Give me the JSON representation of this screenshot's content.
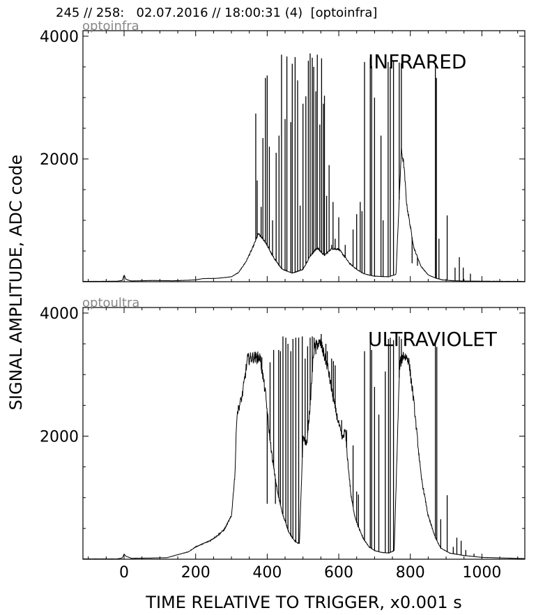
{
  "header": {
    "text": "245 // 258:   02.07.2016 // 18:00:31 (4)  [optoinfra]"
  },
  "shared": {
    "xlabel": "TIME RELATIVE TO TRIGGER,   x0.001 s",
    "ylabel": "SIGNAL AMPLITUDE,  ADC code",
    "xlim": [
      -115,
      1120
    ],
    "ylim": [
      0,
      4090
    ],
    "xticks": [
      0,
      200,
      400,
      600,
      800,
      1000
    ],
    "yticks": [
      2000,
      4000
    ],
    "line_color": "#000000",
    "name_color": "#888888"
  },
  "chart_data": [
    {
      "type": "line",
      "panel_name": "optoinfra",
      "label": "INFRARED",
      "baseline": [
        [
          -115,
          5
        ],
        [
          -20,
          8
        ],
        [
          -5,
          20
        ],
        [
          0,
          110
        ],
        [
          5,
          40
        ],
        [
          20,
          12
        ],
        [
          80,
          20
        ],
        [
          140,
          15
        ],
        [
          200,
          30
        ],
        [
          220,
          50
        ],
        [
          260,
          55
        ],
        [
          300,
          80
        ],
        [
          320,
          150
        ],
        [
          340,
          320
        ],
        [
          360,
          560
        ],
        [
          375,
          780
        ],
        [
          395,
          650
        ],
        [
          415,
          420
        ],
        [
          440,
          210
        ],
        [
          470,
          140
        ],
        [
          500,
          200
        ],
        [
          520,
          420
        ],
        [
          540,
          550
        ],
        [
          560,
          430
        ],
        [
          580,
          540
        ],
        [
          600,
          530
        ],
        [
          615,
          420
        ],
        [
          630,
          300
        ],
        [
          650,
          200
        ],
        [
          670,
          130
        ],
        [
          690,
          100
        ],
        [
          700,
          90
        ],
        [
          740,
          80
        ],
        [
          760,
          120
        ],
        [
          775,
          2150
        ],
        [
          782,
          1900
        ],
        [
          790,
          1250
        ],
        [
          810,
          550
        ],
        [
          830,
          250
        ],
        [
          850,
          110
        ],
        [
          870,
          60
        ],
        [
          890,
          30
        ],
        [
          920,
          15
        ],
        [
          960,
          10
        ],
        [
          1000,
          8
        ],
        [
          1120,
          5
        ]
      ],
      "spikes": [
        [
          368,
          2740
        ],
        [
          372,
          1650
        ],
        [
          383,
          1220
        ],
        [
          388,
          2340
        ],
        [
          395,
          3320
        ],
        [
          400,
          3360
        ],
        [
          406,
          2200
        ],
        [
          415,
          1000
        ],
        [
          425,
          2100
        ],
        [
          433,
          2380
        ],
        [
          440,
          3700
        ],
        [
          450,
          2650
        ],
        [
          455,
          3670
        ],
        [
          466,
          2600
        ],
        [
          470,
          3550
        ],
        [
          478,
          3660
        ],
        [
          485,
          3280
        ],
        [
          492,
          1240
        ],
        [
          500,
          2900
        ],
        [
          508,
          3020
        ],
        [
          515,
          3600
        ],
        [
          520,
          3720
        ],
        [
          526,
          3650
        ],
        [
          530,
          3500
        ],
        [
          536,
          3100
        ],
        [
          540,
          3700
        ],
        [
          547,
          2560
        ],
        [
          552,
          3640
        ],
        [
          557,
          2900
        ],
        [
          560,
          3030
        ],
        [
          566,
          1400
        ],
        [
          573,
          1900
        ],
        [
          580,
          600
        ],
        [
          584,
          1300
        ],
        [
          590,
          700
        ],
        [
          600,
          1050
        ],
        [
          618,
          600
        ],
        [
          640,
          850
        ],
        [
          650,
          1100
        ],
        [
          660,
          1300
        ],
        [
          665,
          1150
        ],
        [
          672,
          3580
        ],
        [
          688,
          3640
        ],
        [
          692,
          3510
        ],
        [
          700,
          3000
        ],
        [
          718,
          2380
        ],
        [
          724,
          1000
        ],
        [
          738,
          3580
        ],
        [
          744,
          3500
        ],
        [
          753,
          3600
        ],
        [
          769,
          3570
        ],
        [
          775,
          3560
        ],
        [
          805,
          300
        ],
        [
          820,
          260
        ],
        [
          870,
          3550
        ],
        [
          873,
          3320
        ],
        [
          880,
          700
        ],
        [
          903,
          1080
        ],
        [
          925,
          230
        ],
        [
          937,
          400
        ],
        [
          948,
          230
        ],
        [
          968,
          130
        ]
      ]
    },
    {
      "type": "line",
      "panel_name": "optoultra",
      "label": "ULTRAVIOLET",
      "baseline": [
        [
          -115,
          5
        ],
        [
          -20,
          5
        ],
        [
          -5,
          20
        ],
        [
          0,
          80
        ],
        [
          5,
          50
        ],
        [
          20,
          15
        ],
        [
          80,
          20
        ],
        [
          120,
          25
        ],
        [
          160,
          90
        ],
        [
          180,
          120
        ],
        [
          200,
          200
        ],
        [
          220,
          250
        ],
        [
          240,
          300
        ],
        [
          260,
          380
        ],
        [
          280,
          480
        ],
        [
          300,
          700
        ],
        [
          310,
          1400
        ],
        [
          315,
          2350
        ],
        [
          330,
          2650
        ],
        [
          345,
          3250
        ],
        [
          360,
          3280
        ],
        [
          380,
          3280
        ],
        [
          395,
          2700
        ],
        [
          405,
          2100
        ],
        [
          415,
          1600
        ],
        [
          430,
          1050
        ],
        [
          445,
          700
        ],
        [
          460,
          450
        ],
        [
          470,
          350
        ],
        [
          480,
          280
        ],
        [
          490,
          250
        ],
        [
          500,
          2000
        ],
        [
          510,
          1850
        ],
        [
          520,
          2500
        ],
        [
          530,
          3400
        ],
        [
          540,
          3500
        ],
        [
          550,
          3500
        ],
        [
          560,
          3300
        ],
        [
          570,
          3100
        ],
        [
          580,
          2750
        ],
        [
          590,
          2450
        ],
        [
          600,
          2200
        ],
        [
          610,
          1950
        ],
        [
          618,
          2100
        ],
        [
          625,
          1600
        ],
        [
          635,
          1000
        ],
        [
          645,
          700
        ],
        [
          655,
          520
        ],
        [
          670,
          320
        ],
        [
          685,
          200
        ],
        [
          700,
          140
        ],
        [
          720,
          110
        ],
        [
          740,
          100
        ],
        [
          755,
          140
        ],
        [
          770,
          3150
        ],
        [
          780,
          3320
        ],
        [
          795,
          3250
        ],
        [
          808,
          2650
        ],
        [
          830,
          1350
        ],
        [
          850,
          700
        ],
        [
          870,
          350
        ],
        [
          885,
          180
        ],
        [
          910,
          100
        ],
        [
          950,
          60
        ],
        [
          1000,
          30
        ],
        [
          1120,
          10
        ]
      ],
      "spikes": [
        [
          372,
          3300
        ],
        [
          385,
          3280
        ],
        [
          400,
          900
        ],
        [
          408,
          3200
        ],
        [
          418,
          3400
        ],
        [
          423,
          900
        ],
        [
          432,
          3400
        ],
        [
          437,
          3380
        ],
        [
          444,
          3620
        ],
        [
          452,
          3600
        ],
        [
          458,
          3500
        ],
        [
          466,
          3380
        ],
        [
          472,
          3580
        ],
        [
          480,
          3600
        ],
        [
          488,
          3600
        ],
        [
          498,
          3620
        ],
        [
          506,
          3260
        ],
        [
          513,
          3460
        ],
        [
          520,
          3600
        ],
        [
          526,
          3620
        ],
        [
          531,
          3600
        ],
        [
          536,
          3330
        ],
        [
          545,
          3550
        ],
        [
          551,
          3660
        ],
        [
          556,
          3400
        ],
        [
          564,
          3500
        ],
        [
          568,
          3380
        ],
        [
          580,
          3260
        ],
        [
          585,
          3220
        ],
        [
          590,
          3150
        ],
        [
          608,
          2260
        ],
        [
          622,
          2100
        ],
        [
          640,
          1850
        ],
        [
          650,
          1100
        ],
        [
          655,
          1050
        ],
        [
          672,
          3380
        ],
        [
          688,
          3600
        ],
        [
          692,
          3400
        ],
        [
          700,
          2800
        ],
        [
          712,
          2350
        ],
        [
          730,
          3050
        ],
        [
          739,
          3580
        ],
        [
          744,
          3600
        ],
        [
          753,
          3560
        ],
        [
          769,
          3620
        ],
        [
          775,
          3580
        ],
        [
          870,
          3500
        ],
        [
          874,
          3450
        ],
        [
          885,
          650
        ],
        [
          903,
          1040
        ],
        [
          920,
          200
        ],
        [
          930,
          350
        ],
        [
          942,
          300
        ],
        [
          955,
          150
        ],
        [
          978,
          90
        ]
      ]
    }
  ]
}
